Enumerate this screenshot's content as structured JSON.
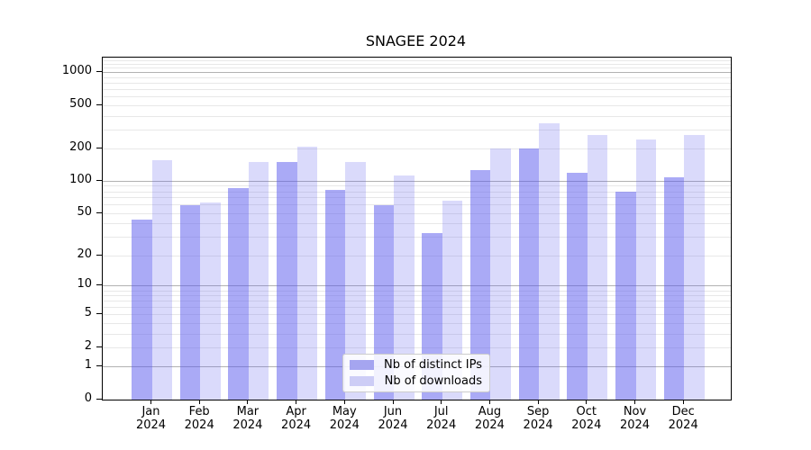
{
  "title": "SNAGEE 2024",
  "chart_data": {
    "type": "bar",
    "title": "SNAGEE 2024",
    "categories": [
      "Jan",
      "Feb",
      "Mar",
      "Apr",
      "May",
      "Jun",
      "Jul",
      "Aug",
      "Sep",
      "Oct",
      "Nov",
      "Dec"
    ],
    "x_tick_year": "2024",
    "series": [
      {
        "name": "Nb of distinct IPs",
        "color": "rgba(85,85,238,0.5)",
        "legend_color": "#a5a5f0",
        "values": [
          44,
          60,
          87,
          150,
          84,
          60,
          33,
          127,
          200,
          120,
          80,
          110
        ]
      },
      {
        "name": "Nb of downloads",
        "color": "rgba(85,85,238,0.22)",
        "legend_color": "#cdcdf6",
        "values": [
          156,
          63,
          150,
          210,
          150,
          113,
          66,
          203,
          345,
          270,
          245,
          270
        ]
      }
    ],
    "y_scale": "log10(value+1)",
    "y_ticks": [
      0,
      1,
      2,
      5,
      10,
      20,
      50,
      100,
      200,
      500,
      1000
    ],
    "ylim": [
      0,
      1380
    ],
    "grid": true,
    "legend_position": "lower center",
    "xlabel": "",
    "ylabel": ""
  },
  "colors": {
    "bar_distinct_ips": "#aaaaf6",
    "bar_downloads": "#dadaf9",
    "major_grid": "#b2b2b2",
    "minor_grid": "#e8e8e8",
    "axis": "#000000",
    "background": "#ffffff"
  }
}
